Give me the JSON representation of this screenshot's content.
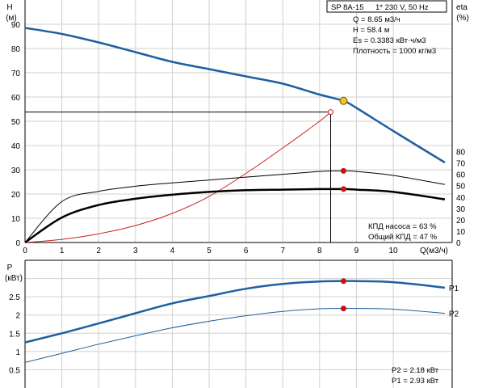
{
  "info_box": {
    "model": "SP 8A-15",
    "supply": "1* 230 V, 50 Hz",
    "lines": [
      "Q = 8.65 м3/ч",
      "H = 58.4 м",
      "Es = 0.3383 кВт·ч/м3",
      "Плотность = 1000 кг/м3"
    ]
  },
  "efficiency_note": [
    "КПД насоса = 63 %",
    "Общий КПД = 47 %"
  ],
  "power_note": [
    "P2 = 2.18 кВт",
    "P1 = 2.93 кВт"
  ],
  "colors": {
    "head_curve": "#1f5fa0",
    "system_curve": "#cc2222",
    "duty_point": "#f2c12e",
    "power_marker": "#cc1111",
    "efficiency": "#000000",
    "grid": "#d0d0d0"
  },
  "chart_data": [
    {
      "type": "line",
      "title": "",
      "ylabel": "H",
      "ylabel_unit": "(м)",
      "y2label": "eta",
      "y2label_unit": "(%)",
      "xlabel": "Q(м3/ч)",
      "xlim": [
        0,
        11.6
      ],
      "ylim": [
        0,
        100
      ],
      "y2lim": [
        0,
        80
      ],
      "x_ticks": [
        0,
        1,
        2,
        3,
        4,
        5,
        6,
        7,
        8,
        9,
        10
      ],
      "y_ticks": [
        0,
        10,
        20,
        30,
        40,
        50,
        60,
        70,
        80,
        90
      ],
      "y2_ticks": [
        0,
        10,
        20,
        30,
        40,
        50,
        60,
        70,
        80
      ],
      "grid": true,
      "duty_point": {
        "x": 8.65,
        "y": 58.4
      },
      "operating_line": {
        "x": 8.3,
        "y": 53.8
      },
      "series": [
        {
          "key": "head",
          "axis": "left",
          "x": [
            0,
            1,
            2,
            3,
            4,
            5,
            6,
            7,
            8,
            8.65,
            9,
            10,
            11.4
          ],
          "y": [
            88.5,
            86,
            82.5,
            78.5,
            74.5,
            71.5,
            68.5,
            65.5,
            61,
            58.4,
            55.5,
            46,
            33
          ]
        },
        {
          "key": "system",
          "axis": "left",
          "x": [
            0,
            1,
            2,
            3,
            4,
            5,
            6,
            7,
            8,
            8.3
          ],
          "y": [
            0,
            1.3,
            3.6,
            7,
            12,
            19,
            28.5,
            39,
            50,
            53.8
          ]
        },
        {
          "key": "eta_pump",
          "axis": "right",
          "x": [
            0,
            1,
            2,
            3,
            4,
            5,
            6,
            7,
            8,
            8.65,
            9,
            10,
            11.4
          ],
          "y": [
            0,
            36,
            45,
            49.5,
            52.5,
            55,
            57.5,
            60,
            62.5,
            63,
            62.5,
            59,
            51
          ]
        },
        {
          "key": "eta_total",
          "axis": "right",
          "x": [
            0,
            1,
            2,
            3,
            4,
            5,
            6,
            7,
            8,
            8.65,
            9,
            10,
            11.4
          ],
          "y": [
            0,
            22,
            33,
            38.5,
            42,
            44.5,
            46,
            46.5,
            47,
            47,
            46.5,
            44.5,
            38
          ]
        }
      ],
      "markers": [
        {
          "series": "eta_pump",
          "x": 8.65,
          "y": 63
        },
        {
          "series": "eta_total",
          "x": 8.65,
          "y": 47
        }
      ]
    },
    {
      "type": "line",
      "ylabel": "P",
      "ylabel_unit": "(кВт)",
      "xlim": [
        0,
        11.6
      ],
      "ylim": [
        0,
        3.5
      ],
      "y_ticks": [
        0.5,
        1,
        1.5,
        2,
        2.5
      ],
      "grid": true,
      "series": [
        {
          "name": "P1",
          "x": [
            0,
            1,
            2,
            3,
            4,
            5,
            6,
            7,
            8,
            8.65,
            9,
            10,
            11.4
          ],
          "y": [
            1.25,
            1.5,
            1.77,
            2.05,
            2.32,
            2.52,
            2.72,
            2.85,
            2.92,
            2.93,
            2.93,
            2.9,
            2.75
          ]
        },
        {
          "name": "P2",
          "x": [
            0,
            1,
            2,
            3,
            4,
            5,
            6,
            7,
            8,
            8.65,
            9,
            10,
            11.4
          ],
          "y": [
            0.7,
            0.95,
            1.2,
            1.43,
            1.65,
            1.83,
            1.98,
            2.1,
            2.17,
            2.18,
            2.18,
            2.16,
            2.05
          ]
        }
      ],
      "markers": [
        {
          "series": "P1",
          "x": 8.65,
          "y": 2.93
        },
        {
          "series": "P2",
          "x": 8.65,
          "y": 2.18
        }
      ]
    }
  ]
}
